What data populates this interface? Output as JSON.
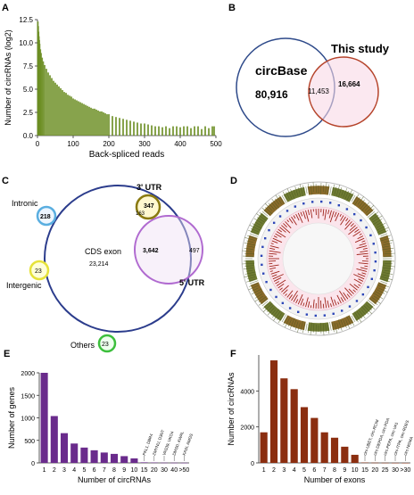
{
  "panels": {
    "A": {
      "letter": "A"
    },
    "B": {
      "letter": "B"
    },
    "C": {
      "letter": "C"
    },
    "D": {
      "letter": "D"
    },
    "E": {
      "letter": "E"
    },
    "F": {
      "letter": "F"
    }
  },
  "venn_b": {
    "left_label": "circBase",
    "right_label": "This study",
    "left_only": "80,916",
    "overlap": "11,453",
    "right_only": "16,664",
    "left_color": "#2e4a8a",
    "right_color": "#b5432a"
  },
  "venn_c": {
    "main_label": "CDS exon",
    "main_count": "23,214",
    "intronic_label": "Intronic",
    "intronic_count": "218",
    "intergenic_label": "Intergenic",
    "intergenic_count": "23",
    "others_label": "Others",
    "others_count": "23",
    "utr3_label": "3' UTR",
    "utr3_count": "347",
    "utr3_overlap": "163",
    "utr5_label": "5' UTR",
    "utr5_overlap": "3,642",
    "utr5_only": "497"
  },
  "chart_data": [
    {
      "panel": "A",
      "type": "bar",
      "xlabel": "Back-spliced reads",
      "ylabel": "Number of circRNAs (log2)",
      "xlim": [
        0,
        500
      ],
      "ylim": [
        0,
        12.5
      ],
      "xticks": [
        0,
        100,
        200,
        300,
        400,
        500
      ],
      "yticks": [
        0.0,
        2.5,
        5.0,
        7.5,
        10.0,
        12.5
      ],
      "color": "#6b8e23",
      "x": [
        1,
        2,
        3,
        4,
        5,
        6,
        8,
        10,
        13,
        16,
        20,
        25,
        30,
        35,
        40,
        45,
        50,
        55,
        60,
        65,
        70,
        75,
        80,
        85,
        90,
        95,
        100,
        105,
        110,
        115,
        120,
        125,
        130,
        135,
        140,
        145,
        150,
        155,
        160,
        165,
        170,
        175,
        180,
        185,
        190,
        195,
        200,
        210,
        220,
        230,
        240,
        250,
        260,
        270,
        280,
        290,
        300,
        310,
        320,
        330,
        340,
        350,
        360,
        370,
        380,
        390,
        400,
        410,
        420,
        430,
        440,
        450,
        460,
        470,
        480,
        490,
        495
      ],
      "values": [
        12.3,
        11.8,
        11.2,
        10.7,
        10.3,
        9.9,
        9.3,
        8.9,
        8.4,
        8.0,
        7.6,
        7.2,
        6.8,
        6.5,
        6.2,
        5.9,
        5.7,
        5.5,
        5.3,
        5.1,
        4.9,
        4.7,
        4.6,
        4.4,
        4.3,
        4.2,
        4.0,
        3.9,
        3.8,
        3.7,
        3.6,
        3.5,
        3.4,
        3.3,
        3.2,
        3.1,
        3.0,
        2.9,
        2.9,
        2.8,
        2.7,
        2.6,
        2.6,
        2.5,
        2.4,
        2.3,
        2.3,
        2.1,
        2.0,
        1.9,
        1.8,
        1.7,
        1.6,
        1.5,
        1.4,
        1.3,
        1.3,
        1.2,
        1.1,
        1.0,
        1.0,
        0.9,
        1.0,
        0.8,
        1.0,
        1.0,
        0.9,
        1.0,
        1.0,
        0.8,
        1.0,
        1.0,
        0.7,
        1.0,
        0.8,
        1.0,
        1.0
      ]
    },
    {
      "panel": "E",
      "type": "bar",
      "xlabel": "Number of circRNAs",
      "ylabel": "Number of genes",
      "ylim": [
        0,
        2000
      ],
      "yticks": [
        0,
        500,
        1000,
        1500,
        2000
      ],
      "categories": [
        "1",
        "2",
        "3",
        "4",
        "5",
        "6",
        "7",
        "8",
        "9",
        "10",
        "15",
        "20",
        "30",
        "40",
        ">50"
      ],
      "values": [
        2000,
        1040,
        660,
        430,
        340,
        280,
        230,
        200,
        150,
        100,
        12,
        8,
        5,
        4,
        3
      ],
      "color": "#6a2b8c",
      "annotations": [
        "PKL1, DBR4",
        "ZMYNU, D3NT",
        "VAS39, UKO4",
        "DMSD, KWAL",
        "KASI, AMGS"
      ]
    },
    {
      "panel": "F",
      "type": "bar",
      "xlabel": "Number of exons",
      "ylabel": "Number of circRNAs",
      "ylim": [
        0,
        6000
      ],
      "yticks": [
        0,
        2000,
        4000
      ],
      "categories": [
        "1",
        "2",
        "3",
        "4",
        "5",
        "6",
        "7",
        "8",
        "9",
        "10",
        "15",
        "20",
        "25",
        "30",
        ">30"
      ],
      "values": [
        1700,
        5700,
        4700,
        4100,
        3100,
        2500,
        1700,
        1400,
        900,
        450,
        20,
        12,
        8,
        5,
        3
      ],
      "color": "#8b2e10",
      "annotations": [
        "circ-UBET, circ-RCIM",
        "circ-DEPDA, circ-PDA",
        "circ-PEPA, circ-VA1",
        "circ-ITPA, circ-RDES",
        "circ-NGMA"
      ]
    }
  ]
}
